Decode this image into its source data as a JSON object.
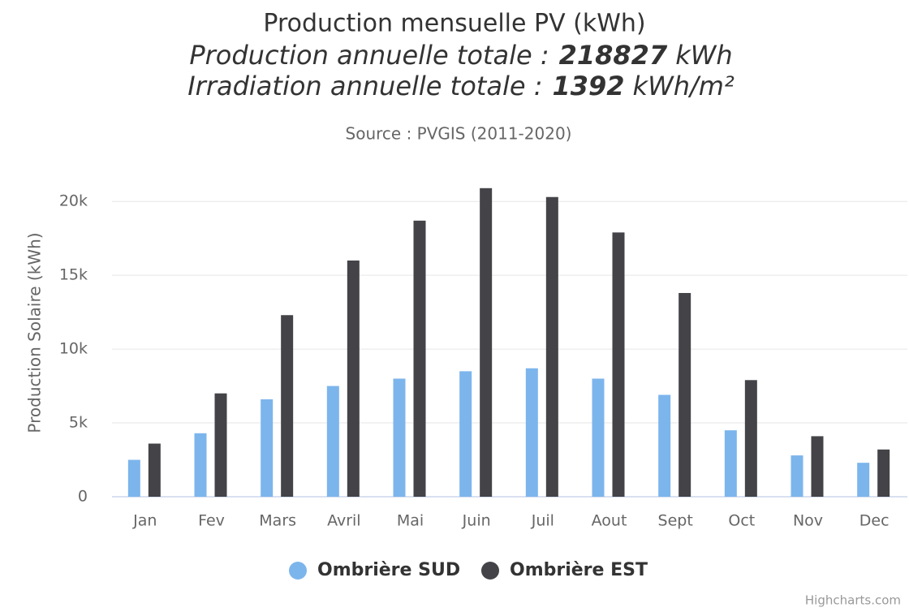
{
  "chart_data": {
    "type": "bar",
    "title": "Production mensuelle PV (kWh)",
    "subtitle_lines": [
      {
        "prefix": "Production annuelle totale :",
        "value": 218827,
        "unit": "kWh"
      },
      {
        "prefix": "Irradiation annuelle totale :",
        "value": 1392,
        "unit": "kWh/m²"
      }
    ],
    "source": "Source : PVGIS (2011-2020)",
    "y_label": "Production Solaire (kWh)",
    "credits": "Highcharts.com",
    "categories": [
      "Jan",
      "Fev",
      "Mars",
      "Avril",
      "Mai",
      "Juin",
      "Juil",
      "Aout",
      "Sept",
      "Oct",
      "Nov",
      "Dec"
    ],
    "series": [
      {
        "name": "Ombrière SUD",
        "color": "#7cb5ec",
        "values": [
          2500,
          4300,
          6600,
          7500,
          8000,
          8500,
          8700,
          8000,
          6900,
          4500,
          2800,
          2300
        ]
      },
      {
        "name": "Ombrière EST",
        "color": "#434348",
        "values": [
          3600,
          7000,
          12300,
          16000,
          18700,
          20900,
          20300,
          17900,
          13800,
          7900,
          4100,
          3200
        ]
      }
    ],
    "ylim": [
      0,
      21000
    ],
    "yticks": [
      0,
      {
        "value": 5000,
        "label": "5k"
      },
      {
        "value": 10000,
        "label": "10k"
      },
      {
        "value": 15000,
        "label": "15k"
      },
      {
        "value": 20000,
        "label": "20k"
      }
    ],
    "grid": true,
    "legend": "bottom"
  }
}
